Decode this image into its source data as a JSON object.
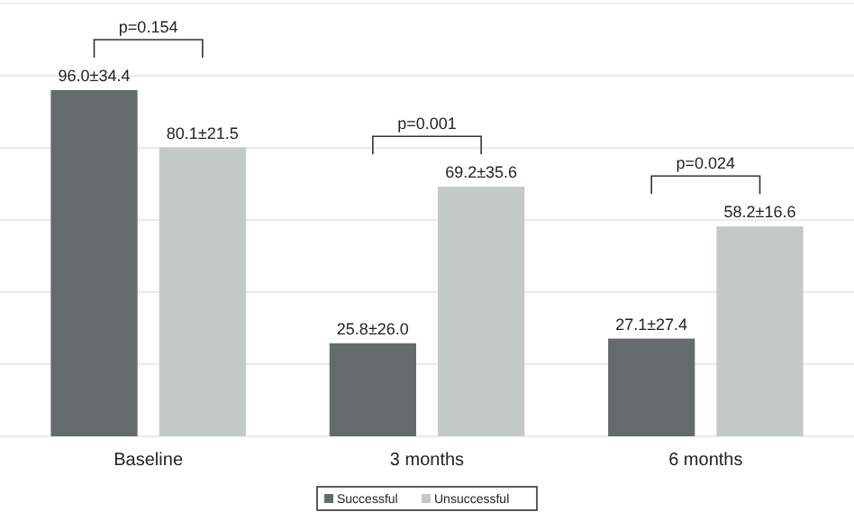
{
  "chart_data": {
    "type": "bar",
    "categories": [
      "Baseline",
      "3 months",
      "6 months"
    ],
    "series": [
      {
        "name": "Successful",
        "color": "#646c6b",
        "values": [
          96.0,
          25.8,
          27.1
        ],
        "value_labels": [
          "96.0±34.4",
          "25.8±26.0",
          "27.1±27.4"
        ]
      },
      {
        "name": "Unsuccessful",
        "color": "#c3c9c7",
        "values": [
          80.1,
          69.2,
          58.2
        ],
        "value_labels": [
          "80.1±21.5",
          "69.2±35.6",
          "58.2±16.6"
        ]
      }
    ],
    "ylim": [
      0,
      120
    ],
    "yticks": [
      {
        "value": 0,
        "label": null
      },
      {
        "value": 20,
        "label": null
      },
      {
        "value": 40,
        "label": null
      },
      {
        "value": 60,
        "label": null
      },
      {
        "value": 80,
        "label": null
      },
      {
        "value": 100,
        "label": null
      },
      {
        "value": 120,
        "label": null
      }
    ],
    "grid": "y",
    "tick_labels": "x",
    "legend": "bottom",
    "annotations": [
      "p=0.154",
      "p=0.001",
      "p=0.024"
    ]
  }
}
